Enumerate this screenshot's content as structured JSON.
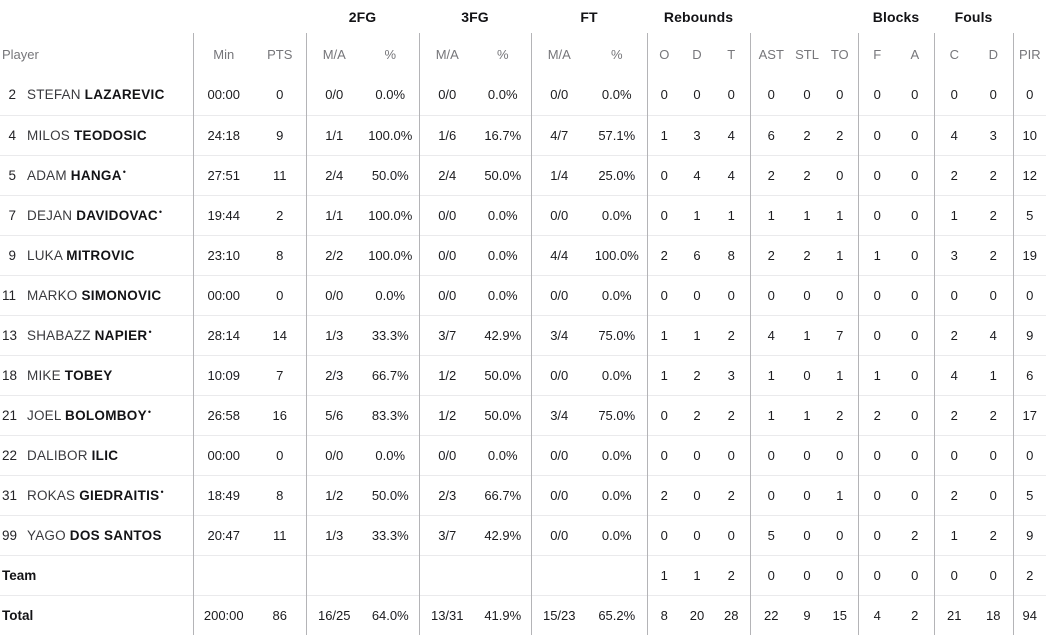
{
  "table": {
    "group_headers": {
      "fg2": "2FG",
      "fg3": "3FG",
      "ft": "FT",
      "rebounds": "Rebounds",
      "blocks": "Blocks",
      "fouls": "Fouls"
    },
    "col_headers": {
      "player": "Player",
      "min": "Min",
      "pts": "PTS",
      "ma": "M/A",
      "pct": "%",
      "reb_o": "O",
      "reb_d": "D",
      "reb_t": "T",
      "ast": "AST",
      "stl": "STL",
      "to": "TO",
      "blk_f": "F",
      "blk_a": "A",
      "foul_c": "C",
      "foul_d": "D",
      "pir": "PIR"
    },
    "starter_marker": "•",
    "rows": [
      {
        "num": "2",
        "first": "STEFAN",
        "last": "LAZAREVIC",
        "starter": false,
        "stats": [
          "00:00",
          "0",
          "0/0",
          "0.0%",
          "0/0",
          "0.0%",
          "0/0",
          "0.0%",
          "0",
          "0",
          "0",
          "0",
          "0",
          "0",
          "0",
          "0",
          "0",
          "0",
          "0"
        ]
      },
      {
        "num": "4",
        "first": "MILOS",
        "last": "TEODOSIC",
        "starter": false,
        "stats": [
          "24:18",
          "9",
          "1/1",
          "100.0%",
          "1/6",
          "16.7%",
          "4/7",
          "57.1%",
          "1",
          "3",
          "4",
          "6",
          "2",
          "2",
          "0",
          "0",
          "4",
          "3",
          "10"
        ]
      },
      {
        "num": "5",
        "first": "ADAM",
        "last": "HANGA",
        "starter": true,
        "stats": [
          "27:51",
          "11",
          "2/4",
          "50.0%",
          "2/4",
          "50.0%",
          "1/4",
          "25.0%",
          "0",
          "4",
          "4",
          "2",
          "2",
          "0",
          "0",
          "0",
          "2",
          "2",
          "12"
        ]
      },
      {
        "num": "7",
        "first": "DEJAN",
        "last": "DAVIDOVAC",
        "starter": true,
        "stats": [
          "19:44",
          "2",
          "1/1",
          "100.0%",
          "0/0",
          "0.0%",
          "0/0",
          "0.0%",
          "0",
          "1",
          "1",
          "1",
          "1",
          "1",
          "0",
          "0",
          "1",
          "2",
          "5"
        ]
      },
      {
        "num": "9",
        "first": "LUKA",
        "last": "MITROVIC",
        "starter": false,
        "stats": [
          "23:10",
          "8",
          "2/2",
          "100.0%",
          "0/0",
          "0.0%",
          "4/4",
          "100.0%",
          "2",
          "6",
          "8",
          "2",
          "2",
          "1",
          "1",
          "0",
          "3",
          "2",
          "19"
        ]
      },
      {
        "num": "11",
        "first": "MARKO",
        "last": "SIMONOVIC",
        "starter": false,
        "stats": [
          "00:00",
          "0",
          "0/0",
          "0.0%",
          "0/0",
          "0.0%",
          "0/0",
          "0.0%",
          "0",
          "0",
          "0",
          "0",
          "0",
          "0",
          "0",
          "0",
          "0",
          "0",
          "0"
        ]
      },
      {
        "num": "13",
        "first": "SHABAZZ",
        "last": "NAPIER",
        "starter": true,
        "stats": [
          "28:14",
          "14",
          "1/3",
          "33.3%",
          "3/7",
          "42.9%",
          "3/4",
          "75.0%",
          "1",
          "1",
          "2",
          "4",
          "1",
          "7",
          "0",
          "0",
          "2",
          "4",
          "9"
        ]
      },
      {
        "num": "18",
        "first": "MIKE",
        "last": "TOBEY",
        "starter": false,
        "stats": [
          "10:09",
          "7",
          "2/3",
          "66.7%",
          "1/2",
          "50.0%",
          "0/0",
          "0.0%",
          "1",
          "2",
          "3",
          "1",
          "0",
          "1",
          "1",
          "0",
          "4",
          "1",
          "6"
        ]
      },
      {
        "num": "21",
        "first": "JOEL",
        "last": "BOLOMBOY",
        "starter": true,
        "stats": [
          "26:58",
          "16",
          "5/6",
          "83.3%",
          "1/2",
          "50.0%",
          "3/4",
          "75.0%",
          "0",
          "2",
          "2",
          "1",
          "1",
          "2",
          "2",
          "0",
          "2",
          "2",
          "17"
        ]
      },
      {
        "num": "22",
        "first": "DALIBOR",
        "last": "ILIC",
        "starter": false,
        "stats": [
          "00:00",
          "0",
          "0/0",
          "0.0%",
          "0/0",
          "0.0%",
          "0/0",
          "0.0%",
          "0",
          "0",
          "0",
          "0",
          "0",
          "0",
          "0",
          "0",
          "0",
          "0",
          "0"
        ]
      },
      {
        "num": "31",
        "first": "ROKAS",
        "last": "GIEDRAITIS",
        "starter": true,
        "stats": [
          "18:49",
          "8",
          "1/2",
          "50.0%",
          "2/3",
          "66.7%",
          "0/0",
          "0.0%",
          "2",
          "0",
          "2",
          "0",
          "0",
          "1",
          "0",
          "0",
          "2",
          "0",
          "5"
        ]
      },
      {
        "num": "99",
        "first": "YAGO",
        "last": "DOS SANTOS",
        "starter": false,
        "stats": [
          "20:47",
          "11",
          "1/3",
          "33.3%",
          "3/7",
          "42.9%",
          "0/0",
          "0.0%",
          "0",
          "0",
          "0",
          "5",
          "0",
          "0",
          "0",
          "2",
          "1",
          "2",
          "9"
        ]
      },
      {
        "label": "Team",
        "stats": [
          "",
          "",
          "",
          "",
          "",
          "",
          "",
          "",
          "1",
          "1",
          "2",
          "0",
          "0",
          "0",
          "0",
          "0",
          "0",
          "0",
          "2"
        ]
      },
      {
        "label": "Total",
        "stats": [
          "200:00",
          "86",
          "16/25",
          "64.0%",
          "13/31",
          "41.9%",
          "15/23",
          "65.2%",
          "8",
          "20",
          "28",
          "22",
          "9",
          "15",
          "4",
          "2",
          "21",
          "18",
          "94"
        ]
      }
    ]
  },
  "colors": {
    "header_text": "#76767a",
    "group_header_text": "#131316",
    "data_text": "#1b1b1e",
    "vertical_line": "#b4b4b7",
    "horizontal_line": "#eaeaec",
    "background": "#ffffff"
  }
}
